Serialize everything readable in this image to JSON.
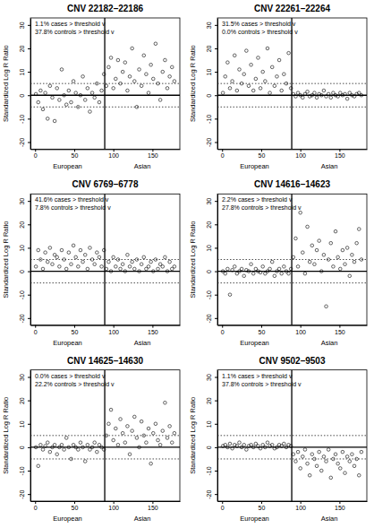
{
  "chart_data": [
    {
      "type": "scatter",
      "title": "CNV 22182–22186",
      "y_label": "Standardized Log R Ratio",
      "annotations": [
        "1.1% cases > threshold v",
        "37.8% controls > threshold v"
      ],
      "group_labels": [
        "European",
        "Asian"
      ],
      "group_boundary": 89,
      "thresholds": [
        -5,
        5
      ],
      "reference_line": 0,
      "xlim": [
        -6,
        185
      ],
      "ylim": [
        -23,
        33
      ],
      "xticks": [
        0,
        50,
        100,
        150
      ],
      "yticks": [
        -20,
        -10,
        0,
        10,
        20,
        30
      ],
      "color": "#000000",
      "marker": "circle_open",
      "x": [
        1,
        4,
        7,
        10,
        13,
        16,
        19,
        22,
        25,
        28,
        31,
        34,
        37,
        40,
        43,
        46,
        49,
        52,
        55,
        58,
        61,
        64,
        67,
        70,
        73,
        76,
        79,
        82,
        85,
        88,
        91,
        94,
        97,
        100,
        103,
        106,
        109,
        112,
        115,
        118,
        121,
        124,
        127,
        130,
        133,
        136,
        139,
        142,
        145,
        148,
        151,
        154,
        157,
        160,
        163,
        166,
        169,
        172,
        175,
        178
      ],
      "values": [
        0.5,
        -3,
        2,
        -6,
        1,
        -10,
        4,
        -1,
        -11,
        3,
        -2,
        11,
        0,
        -4,
        2,
        -3,
        6,
        1,
        -5,
        0,
        8,
        -2,
        3,
        -7,
        1,
        -1,
        5,
        -3,
        2,
        9,
        4,
        12,
        16,
        3,
        7,
        15,
        5,
        10,
        14,
        2,
        8,
        20,
        6,
        -5,
        11,
        4,
        17,
        9,
        1,
        13,
        7,
        22,
        5,
        -2,
        10,
        15,
        3,
        8,
        12,
        6
      ]
    },
    {
      "type": "scatter",
      "title": "CNV 22261–22264",
      "y_label": "Standardized Log R Ratio",
      "annotations": [
        "31.5% cases > threshold v",
        "0.0% controls > threshold v"
      ],
      "group_labels": [
        "European",
        "Asian"
      ],
      "group_boundary": 89,
      "thresholds": [
        -5,
        5
      ],
      "reference_line": 0,
      "xlim": [
        -6,
        185
      ],
      "ylim": [
        -23,
        33
      ],
      "xticks": [
        0,
        50,
        100,
        150
      ],
      "yticks": [
        -20,
        -10,
        0,
        10,
        20,
        30
      ],
      "color": "#000000",
      "marker": "circle_open",
      "x": [
        1,
        4,
        7,
        10,
        13,
        16,
        19,
        22,
        25,
        28,
        31,
        34,
        37,
        40,
        43,
        46,
        49,
        52,
        55,
        58,
        61,
        64,
        67,
        70,
        73,
        76,
        79,
        82,
        85,
        88,
        91,
        94,
        97,
        100,
        103,
        106,
        109,
        112,
        115,
        118,
        121,
        124,
        127,
        130,
        133,
        136,
        139,
        142,
        145,
        148,
        151,
        154,
        157,
        160,
        163,
        166,
        169,
        172,
        175,
        178
      ],
      "values": [
        1,
        8,
        14,
        3,
        6,
        17,
        2,
        11,
        5,
        9,
        19,
        4,
        13,
        2,
        7,
        16,
        3,
        10,
        6,
        20,
        1,
        12,
        4,
        8,
        15,
        2,
        9,
        5,
        18,
        3,
        0.5,
        -0.5,
        1,
        0,
        -1,
        0.5,
        1.5,
        -0.5,
        0,
        1,
        -1,
        0.5,
        0,
        2,
        -0.5,
        0.5,
        -1,
        1,
        0,
        -0.5,
        1,
        0,
        0.5,
        -1.5,
        1,
        0,
        -0.5,
        0.5,
        1,
        0
      ]
    },
    {
      "type": "scatter",
      "title": "CNV 6769–6778",
      "y_label": "Standardized Log R Ratio",
      "annotations": [
        "41.6% cases > threshold v",
        "7.8% controls > threshold v"
      ],
      "group_labels": [
        "European",
        "Asian"
      ],
      "group_boundary": 89,
      "thresholds": [
        -5,
        5
      ],
      "reference_line": 0,
      "xlim": [
        -6,
        185
      ],
      "ylim": [
        -23,
        33
      ],
      "xticks": [
        0,
        50,
        100,
        150
      ],
      "yticks": [
        -20,
        -10,
        0,
        10,
        20,
        30
      ],
      "color": "#000000",
      "marker": "circle_open",
      "x": [
        1,
        4,
        7,
        10,
        13,
        16,
        19,
        22,
        25,
        28,
        31,
        34,
        37,
        40,
        43,
        46,
        49,
        52,
        55,
        58,
        61,
        64,
        67,
        70,
        73,
        76,
        79,
        82,
        85,
        88,
        91,
        94,
        97,
        100,
        103,
        106,
        109,
        112,
        115,
        118,
        121,
        124,
        127,
        130,
        133,
        136,
        139,
        142,
        145,
        148,
        151,
        154,
        157,
        160,
        163,
        166,
        169,
        172,
        175,
        178
      ],
      "values": [
        2,
        9,
        5,
        1,
        8,
        4,
        10,
        3,
        7,
        6,
        2,
        9,
        5,
        1,
        8,
        3,
        11,
        6,
        2,
        9,
        4,
        7,
        1,
        10,
        5,
        3,
        8,
        6,
        2,
        9,
        1,
        4,
        0,
        6,
        2,
        5,
        1,
        3,
        0,
        7,
        2,
        4,
        1,
        5,
        0,
        3,
        6,
        1,
        2,
        4,
        0,
        5,
        1,
        3,
        2,
        6,
        0,
        4,
        1,
        2
      ]
    },
    {
      "type": "scatter",
      "title": "CNV 14616–14623",
      "y_label": "Standardized Log R Ratio",
      "annotations": [
        "2.2% cases > threshold v",
        "27.8% controls > threshold v"
      ],
      "group_labels": [
        "European",
        "Asian"
      ],
      "group_boundary": 89,
      "thresholds": [
        -5,
        5
      ],
      "reference_line": 0,
      "xlim": [
        -6,
        185
      ],
      "ylim": [
        -23,
        33
      ],
      "xticks": [
        0,
        50,
        100,
        150
      ],
      "yticks": [
        -20,
        -10,
        0,
        10,
        20,
        30
      ],
      "color": "#000000",
      "marker": "circle_open",
      "x": [
        1,
        4,
        7,
        10,
        13,
        16,
        19,
        22,
        25,
        28,
        31,
        34,
        37,
        40,
        43,
        46,
        49,
        52,
        55,
        58,
        61,
        64,
        67,
        70,
        73,
        76,
        79,
        82,
        85,
        88,
        91,
        94,
        97,
        100,
        103,
        106,
        109,
        112,
        115,
        118,
        121,
        124,
        127,
        130,
        133,
        136,
        139,
        142,
        145,
        148,
        151,
        154,
        157,
        160,
        163,
        166,
        169,
        172,
        175,
        178
      ],
      "values": [
        0,
        -1,
        1,
        -10,
        0.5,
        2,
        -1,
        0,
        1,
        -2,
        0.5,
        0,
        3,
        -1,
        1,
        0,
        -0.5,
        2,
        -1,
        0,
        1,
        4,
        -2,
        0,
        1,
        -1,
        2,
        0,
        -1,
        1,
        6,
        14,
        2,
        25,
        8,
        -1,
        19,
        4,
        11,
        3,
        9,
        13,
        0,
        7,
        -15,
        5,
        12,
        2,
        17,
        6,
        1,
        9,
        3,
        10,
        -2,
        7,
        4,
        12,
        18,
        5
      ]
    },
    {
      "type": "scatter",
      "title": "CNV 14625–14630",
      "y_label": "Standardized Log R Ratio",
      "annotations": [
        "0.0% cases > threshold v",
        "22.2% controls > threshold v"
      ],
      "group_labels": [
        "European",
        "Asian"
      ],
      "group_boundary": 89,
      "thresholds": [
        -5,
        5
      ],
      "reference_line": 0,
      "xlim": [
        -6,
        185
      ],
      "ylim": [
        -23,
        33
      ],
      "xticks": [
        0,
        50,
        100,
        150
      ],
      "yticks": [
        -20,
        -10,
        0,
        10,
        20,
        30
      ],
      "color": "#000000",
      "marker": "circle_open",
      "x": [
        1,
        4,
        7,
        10,
        13,
        16,
        19,
        22,
        25,
        28,
        31,
        34,
        37,
        40,
        43,
        46,
        49,
        52,
        55,
        58,
        61,
        64,
        67,
        70,
        73,
        76,
        79,
        82,
        85,
        88,
        91,
        94,
        97,
        100,
        103,
        106,
        109,
        112,
        115,
        118,
        121,
        124,
        127,
        130,
        133,
        136,
        139,
        142,
        145,
        148,
        151,
        154,
        157,
        160,
        163,
        166,
        169,
        172,
        175,
        178
      ],
      "values": [
        0,
        -8,
        1,
        -1,
        0.5,
        2,
        -2,
        0,
        1,
        -3,
        0,
        1,
        -1,
        4,
        0,
        -5,
        1,
        0,
        -1,
        2,
        0,
        -6,
        1,
        -1,
        0,
        2,
        -2,
        1,
        0,
        -1,
        5,
        10,
        16,
        3,
        8,
        1,
        12,
        6,
        2,
        9,
        -3,
        7,
        13,
        4,
        0,
        11,
        5,
        2,
        8,
        -7,
        6,
        10,
        3,
        1,
        7,
        19,
        4,
        9,
        2,
        6
      ]
    },
    {
      "type": "scatter",
      "title": "CNV 9502–9503",
      "y_label": "Standardized Log R Ratio",
      "annotations": [
        "1.1% cases > threshold v",
        "37.8% controls > threshold v"
      ],
      "group_labels": [
        "European",
        "Asian"
      ],
      "group_boundary": 89,
      "thresholds": [
        -5,
        5
      ],
      "reference_line": 0,
      "xlim": [
        -6,
        185
      ],
      "ylim": [
        -23,
        33
      ],
      "xticks": [
        0,
        50,
        100,
        150
      ],
      "yticks": [
        -20,
        -10,
        0,
        10,
        20,
        30
      ],
      "color": "#000000",
      "marker": "circle_open",
      "x": [
        1,
        4,
        7,
        10,
        13,
        16,
        19,
        22,
        25,
        28,
        31,
        34,
        37,
        40,
        43,
        46,
        49,
        52,
        55,
        58,
        61,
        64,
        67,
        70,
        73,
        76,
        79,
        82,
        85,
        88,
        91,
        94,
        97,
        100,
        103,
        106,
        109,
        112,
        115,
        118,
        121,
        124,
        127,
        130,
        133,
        136,
        139,
        142,
        145,
        148,
        151,
        154,
        157,
        160,
        163,
        166,
        169,
        172,
        175,
        178
      ],
      "values": [
        0.5,
        1,
        0,
        1.5,
        -0.5,
        1,
        0.5,
        2,
        0,
        1,
        -1,
        0.5,
        1,
        0,
        1.5,
        0.5,
        -0.5,
        1,
        0,
        2,
        0.5,
        1,
        -0.5,
        0,
        1,
        0.5,
        1.5,
        0,
        1,
        0.5,
        -3,
        -6,
        -2,
        -9,
        -4,
        -1,
        -7,
        -12,
        -3,
        -5,
        -8,
        -2,
        -10,
        -4,
        -6,
        -1,
        -13,
        -5,
        -3,
        -7,
        -9,
        -2,
        -11,
        -4,
        -6,
        -3,
        -8,
        -5,
        -12,
        -2
      ]
    }
  ]
}
